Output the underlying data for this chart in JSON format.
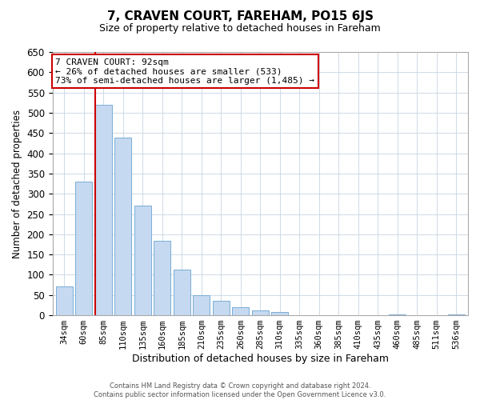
{
  "title": "7, CRAVEN COURT, FAREHAM, PO15 6JS",
  "subtitle": "Size of property relative to detached houses in Fareham",
  "xlabel": "Distribution of detached houses by size in Fareham",
  "ylabel": "Number of detached properties",
  "bar_labels": [
    "34sqm",
    "60sqm",
    "85sqm",
    "110sqm",
    "135sqm",
    "160sqm",
    "185sqm",
    "210sqm",
    "235sqm",
    "260sqm",
    "285sqm",
    "310sqm",
    "335sqm",
    "360sqm",
    "385sqm",
    "410sqm",
    "435sqm",
    "460sqm",
    "485sqm",
    "511sqm",
    "536sqm"
  ],
  "bar_values": [
    72,
    330,
    520,
    438,
    270,
    184,
    113,
    50,
    35,
    20,
    13,
    8,
    0,
    0,
    0,
    0,
    0,
    3,
    0,
    0,
    3
  ],
  "bar_color": "#c5d9f0",
  "bar_edge_color": "#7aaed6",
  "vline_color": "#cc0000",
  "ylim": [
    0,
    650
  ],
  "yticks": [
    0,
    50,
    100,
    150,
    200,
    250,
    300,
    350,
    400,
    450,
    500,
    550,
    600,
    650
  ],
  "annotation_title": "7 CRAVEN COURT: 92sqm",
  "annotation_line1": "← 26% of detached houses are smaller (533)",
  "annotation_line2": "73% of semi-detached houses are larger (1,485) →",
  "footer_line1": "Contains HM Land Registry data © Crown copyright and database right 2024.",
  "footer_line2": "Contains public sector information licensed under the Open Government Licence v3.0.",
  "background_color": "#ffffff",
  "grid_color": "#c8d4e3"
}
